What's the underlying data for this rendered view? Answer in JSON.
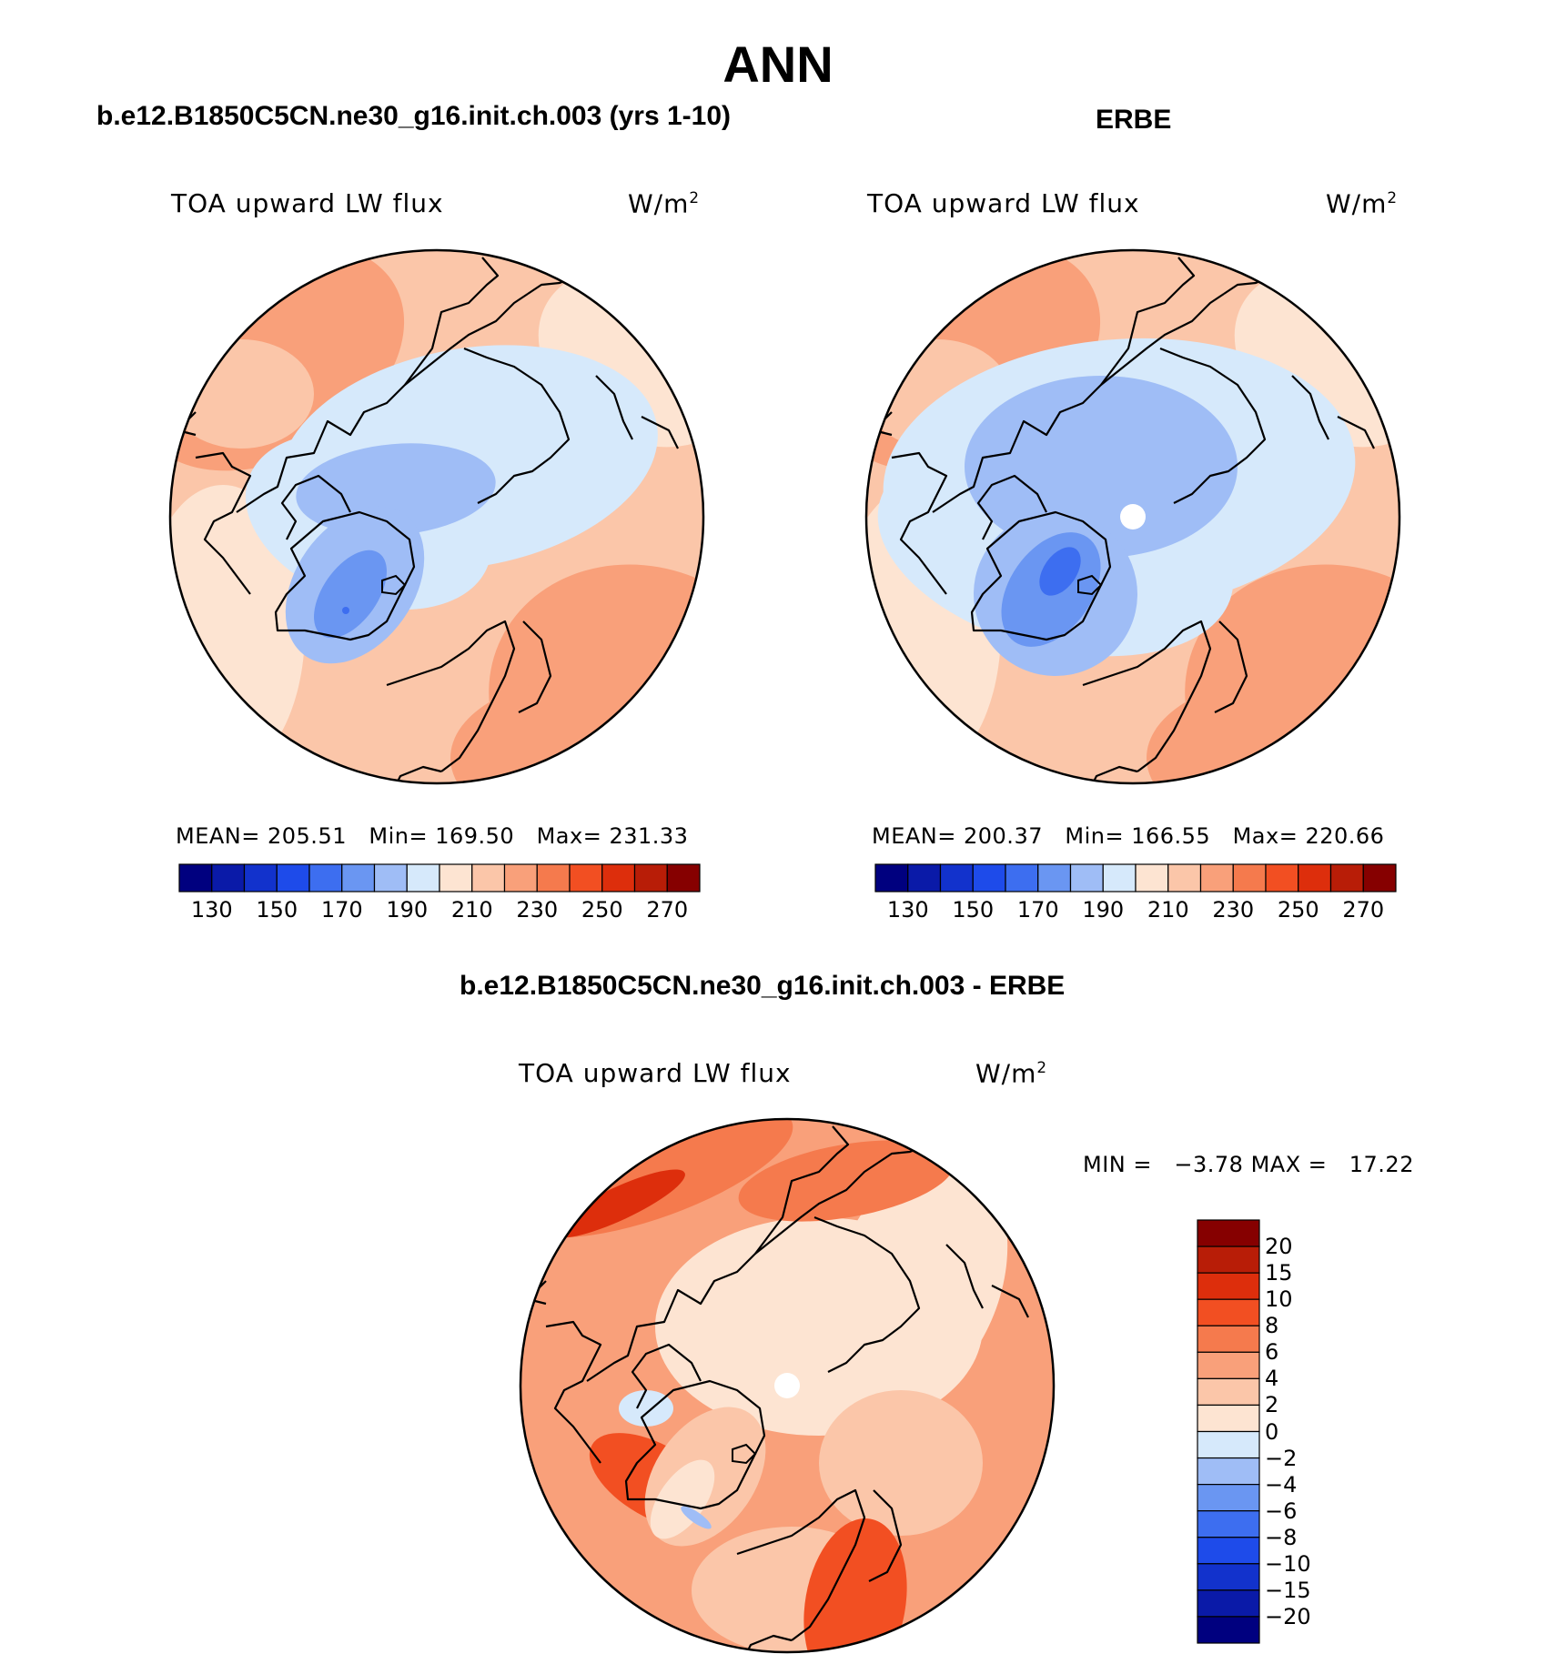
{
  "title": "ANN",
  "chart_data": [
    {
      "type": "heatmap",
      "projection": "north polar stereographic",
      "case_title": "b.e12.B1850C5CN.ne30_g16.init.ch.003 (yrs 1-10)",
      "field_label": "TOA upward LW flux",
      "units": "W/m",
      "units_exp": "2",
      "stats": {
        "mean_label": "MEAN=",
        "mean": "205.51",
        "min_label": "Min=",
        "min": "169.50",
        "max_label": "Max=",
        "max": "231.33"
      },
      "colorbar_ticks": [
        "130",
        "150",
        "170",
        "190",
        "210",
        "230",
        "250",
        "270"
      ],
      "colorbar_levels": [
        120,
        130,
        140,
        150,
        160,
        170,
        180,
        190,
        200,
        210,
        220,
        230,
        240,
        250,
        260,
        270,
        280
      ]
    },
    {
      "type": "heatmap",
      "projection": "north polar stereographic",
      "case_title": "ERBE",
      "field_label": "TOA upward LW flux",
      "units": "W/m",
      "units_exp": "2",
      "stats": {
        "mean_label": "MEAN=",
        "mean": "200.37",
        "min_label": "Min=",
        "min": "166.55",
        "max_label": "Max=",
        "max": "220.66"
      },
      "colorbar_ticks": [
        "130",
        "150",
        "170",
        "190",
        "210",
        "230",
        "250",
        "270"
      ],
      "colorbar_levels": [
        120,
        130,
        140,
        150,
        160,
        170,
        180,
        190,
        200,
        210,
        220,
        230,
        240,
        250,
        260,
        270,
        280
      ]
    },
    {
      "type": "heatmap",
      "projection": "north polar stereographic",
      "case_title": "b.e12.B1850C5CN.ne30_g16.init.ch.003 - ERBE",
      "field_label": "TOA upward LW flux",
      "units": "W/m",
      "units_exp": "2",
      "stats": {
        "min_label": "MIN =",
        "min": "−3.78",
        "max_label": "MAX =",
        "max": "17.22"
      },
      "colorbar_ticks": [
        "20",
        "15",
        "10",
        "8",
        "6",
        "4",
        "2",
        "0",
        "−2",
        "−4",
        "−6",
        "−8",
        "−10",
        "−15",
        "−20"
      ]
    }
  ],
  "palette": [
    "#00007f",
    "#0a1aa8",
    "#1232cc",
    "#1e4bea",
    "#3d6ef0",
    "#6a96f2",
    "#9fbdf6",
    "#d6e9fb",
    "#fde4d2",
    "#fbc6a9",
    "#f9a07a",
    "#f57a4d",
    "#f24f22",
    "#dd2e0c",
    "#b81d07",
    "#860000"
  ],
  "colors": {
    "background": "#ffffff",
    "outline": "#000000"
  }
}
